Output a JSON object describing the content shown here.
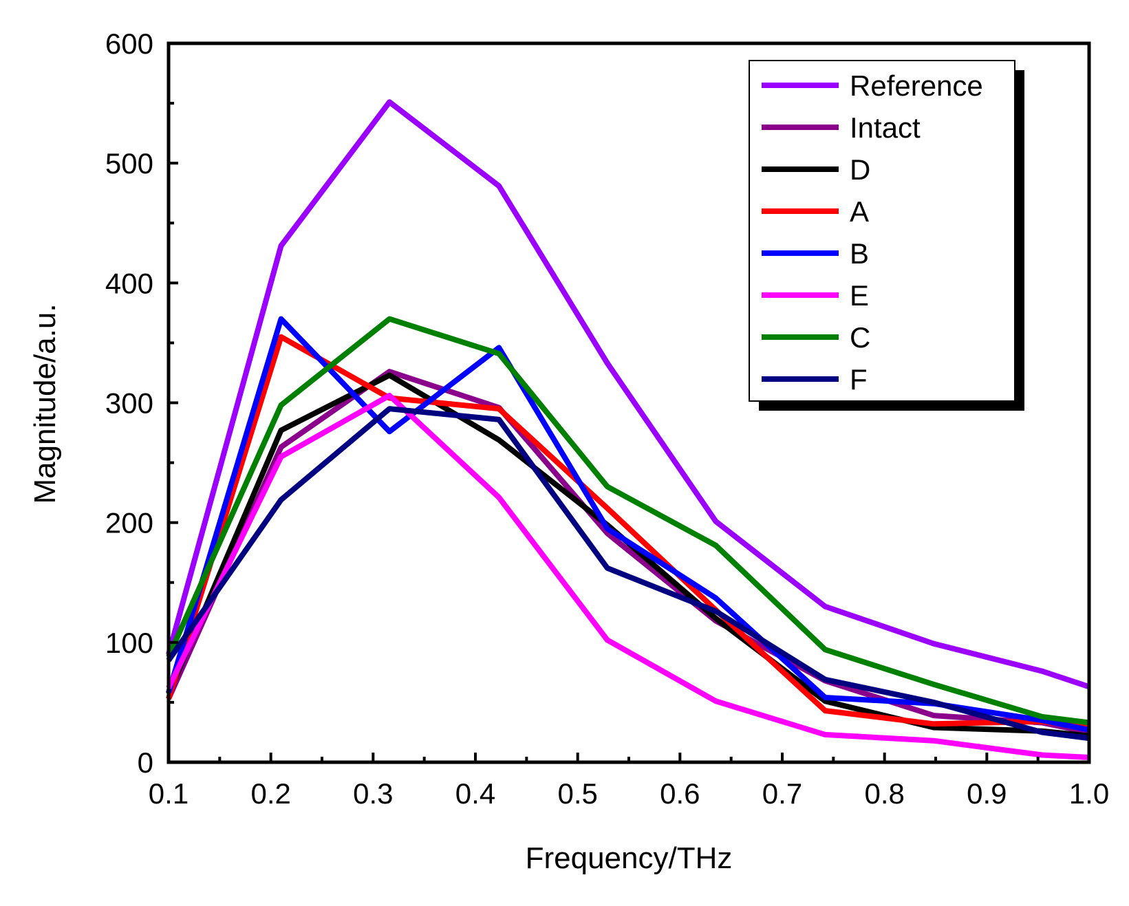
{
  "chart_data": {
    "type": "line",
    "title": "",
    "xlabel": "Frequency/THz",
    "ylabel": "Magnitude/a.u.",
    "xlim": [
      0.1,
      1.0
    ],
    "ylim": [
      0,
      600
    ],
    "x_ticks": [
      0.1,
      0.2,
      0.3,
      0.4,
      0.5,
      0.6,
      0.7,
      0.8,
      0.9,
      1.0
    ],
    "x_tick_labels": [
      "0.1",
      "0.2",
      "0.3",
      "0.4",
      "0.5",
      "0.6",
      "0.7",
      "0.8",
      "0.9",
      "1.0"
    ],
    "y_ticks": [
      0,
      100,
      200,
      300,
      400,
      500,
      600
    ],
    "y_tick_labels": [
      "0",
      "100",
      "200",
      "300",
      "400",
      "500",
      "600"
    ],
    "grid": false,
    "legend_position": "top-right",
    "x": [
      0.1,
      0.21,
      0.316,
      0.423,
      0.529,
      0.635,
      0.742,
      0.848,
      0.954,
      1.0
    ],
    "series": [
      {
        "name": "Reference",
        "color": "#9B00FF",
        "values": [
          90,
          431,
          551,
          481,
          333,
          201,
          130,
          99,
          76,
          63
        ]
      },
      {
        "name": "Intact",
        "color": "#8B008B",
        "values": [
          53,
          263,
          326,
          296,
          191,
          118,
          68,
          39,
          33,
          25
        ]
      },
      {
        "name": "D",
        "color": "#000000",
        "values": [
          57,
          277,
          323,
          269,
          198,
          120,
          51,
          29,
          26,
          22
        ]
      },
      {
        "name": "A",
        "color": "#FF0000",
        "values": [
          53,
          355,
          304,
          295,
          212,
          127,
          43,
          32,
          34,
          29
        ]
      },
      {
        "name": "B",
        "color": "#0000FF",
        "values": [
          58,
          370,
          276,
          346,
          195,
          137,
          54,
          49,
          35,
          27
        ]
      },
      {
        "name": "E",
        "color": "#FF00FF",
        "values": [
          62,
          255,
          306,
          221,
          102,
          51,
          23,
          18,
          6,
          4
        ]
      },
      {
        "name": "C",
        "color": "#008000",
        "values": [
          88,
          298,
          370,
          341,
          230,
          181,
          94,
          65,
          38,
          33
        ]
      },
      {
        "name": "F",
        "color": "#000080",
        "values": [
          85,
          219,
          295,
          286,
          162,
          126,
          69,
          50,
          25,
          20
        ]
      }
    ]
  }
}
